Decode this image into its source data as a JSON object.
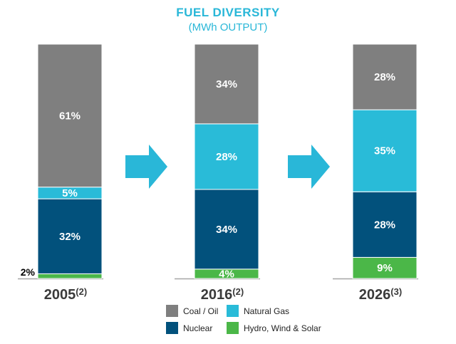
{
  "title": "FUEL DIVERSITY",
  "subtitle": "(MWh OUTPUT)",
  "colors": {
    "coal_oil": "#7f7f7f",
    "natural_gas": "#29bbd8",
    "nuclear": "#02517c",
    "renewables": "#4bb748",
    "arrow": "#29b7d8"
  },
  "legend": [
    {
      "key": "coal_oil",
      "label": "Coal / Oil"
    },
    {
      "key": "natural_gas",
      "label": "Natural Gas"
    },
    {
      "key": "nuclear",
      "label": "Nuclear"
    },
    {
      "key": "renewables",
      "label": "Hydro, Wind & Solar"
    }
  ],
  "chart_data": {
    "type": "bar",
    "stacked": true,
    "percent_stacked": true,
    "title": "FUEL DIVERSITY",
    "subtitle": "(MWh OUTPUT)",
    "categories": [
      {
        "label": "2005",
        "superscript": "(2)"
      },
      {
        "label": "2016",
        "superscript": "(2)"
      },
      {
        "label": "2026",
        "superscript": "(3)"
      }
    ],
    "series": [
      {
        "key": "renewables",
        "name": "Hydro, Wind & Solar",
        "values": [
          2,
          4,
          9
        ],
        "labels": [
          "2%",
          "4%",
          "9%"
        ]
      },
      {
        "key": "nuclear",
        "name": "Nuclear",
        "values": [
          32,
          34,
          28
        ],
        "labels": [
          "32%",
          "34%",
          "28%"
        ]
      },
      {
        "key": "natural_gas",
        "name": "Natural Gas",
        "values": [
          5,
          28,
          35
        ],
        "labels": [
          "5%",
          "28%",
          "35%"
        ]
      },
      {
        "key": "coal_oil",
        "name": "Coal / Oil",
        "values": [
          61,
          34,
          28
        ],
        "labels": [
          "61%",
          "34%",
          "28%"
        ]
      }
    ],
    "legend_position": "bottom"
  }
}
